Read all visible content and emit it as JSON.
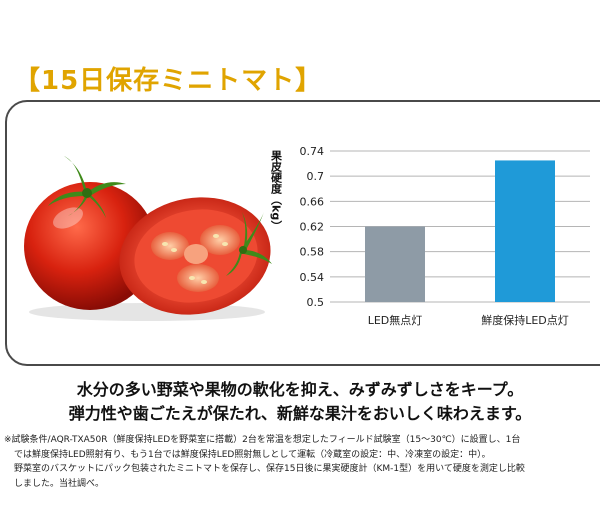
{
  "title": "【15日保存ミニトマト】",
  "chart_data": {
    "type": "bar",
    "ylabel": "果皮硬度（kg）",
    "categories": [
      "LED無点灯",
      "鮮度保持LED点灯"
    ],
    "values": [
      0.62,
      0.725
    ],
    "ylim": [
      0.5,
      0.74
    ],
    "yticks": [
      "0.74",
      "0.7",
      "0.66",
      "0.62",
      "0.58",
      "0.54",
      "0.5"
    ],
    "colors": [
      "#8e9ba6",
      "#1f9ad8"
    ],
    "grid": true
  },
  "caption": {
    "line1": "水分の多い野菜や果物の軟化を抑え、みずみずしさをキープ。",
    "line2": "弾力性や歯ごたえが保たれ、新鮮な果汁をおいしく味わえます。"
  },
  "note": {
    "line1": "※試験条件/AQR-TXA50R（鮮度保持LEDを野菜室に搭載）2台を常温を想定したフィールド試験室（15～30℃）に設置し、1台",
    "line2": "では鮮度保持LED照射有り、もう1台では鮮度保持LED照射無しとして運転（冷蔵室の設定：中、冷凍室の設定：中）。",
    "line3": "野菜室のバスケットにパック包装されたミニトマトを保存し、保存15日後に果実硬度計（KM-1型）を用いて硬度を測定し比較",
    "line4": "しました。当社調べ。"
  }
}
